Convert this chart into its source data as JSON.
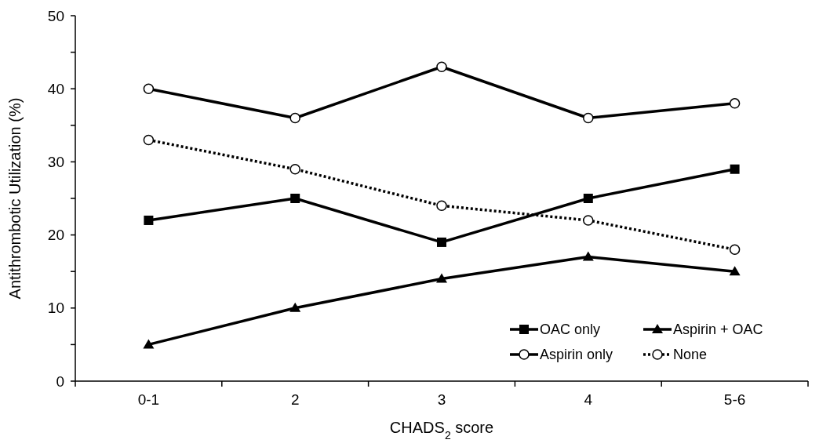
{
  "chart_data": {
    "type": "line",
    "xlabel": "CHADS$_{2}$ score",
    "ylabel": "Antithrombotic Utilization (%)",
    "categories": [
      "0-1",
      "2",
      "3",
      "4",
      "5-6"
    ],
    "series": [
      {
        "name": "OAC only",
        "color": "#000000",
        "marker": "square",
        "line_style": "solid",
        "values": [
          22,
          25,
          19,
          25,
          29
        ]
      },
      {
        "name": "Aspirin + OAC",
        "color": "#000000",
        "marker": "triangle",
        "line_style": "solid",
        "values": [
          5,
          10,
          14,
          17,
          15
        ]
      },
      {
        "name": "Aspirin only",
        "color": "#000000",
        "marker": "circle",
        "line_style": "solid",
        "values": [
          40,
          36,
          43,
          36,
          38
        ]
      },
      {
        "name": "None",
        "color": "#000000",
        "marker": "circle",
        "line_style": "dotted",
        "values": [
          33,
          29,
          24,
          22,
          18
        ]
      }
    ],
    "ylim": [
      0,
      50
    ],
    "yticks": [
      0,
      {
        "value": 5,
        "label": null
      },
      10,
      {
        "value": 15,
        "label": null
      },
      20,
      {
        "value": 25,
        "label": null
      },
      30,
      {
        "value": 35,
        "label": null
      },
      40,
      {
        "value": 45,
        "label": null
      },
      50
    ],
    "grid": false,
    "legend": "bottom right"
  }
}
